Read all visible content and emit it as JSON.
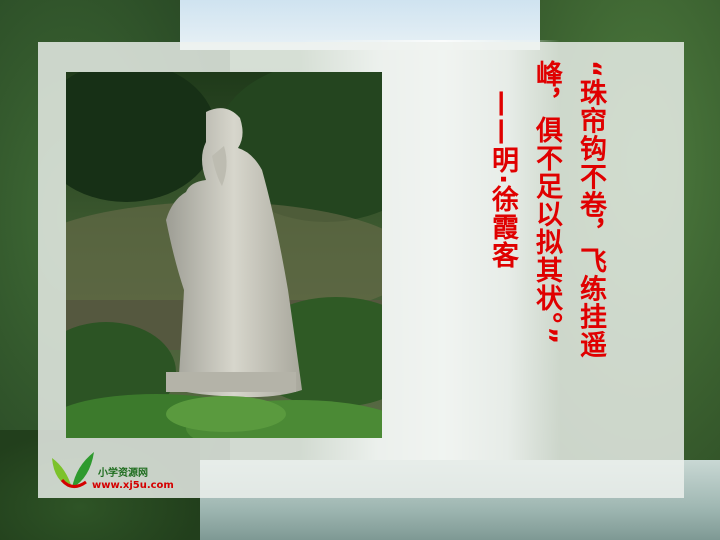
{
  "verse": {
    "line1": "“珠帘钩不卷，飞练挂遥",
    "line2": "峰，俱不足以拟其状。”",
    "line3": "——明·徐霞客"
  },
  "logo": {
    "name": "小学资源网",
    "url": "www.xj5u.com"
  },
  "colors": {
    "verse_text": "#e00000",
    "logo_name": "#1f6d1f",
    "logo_url": "#d40000"
  }
}
